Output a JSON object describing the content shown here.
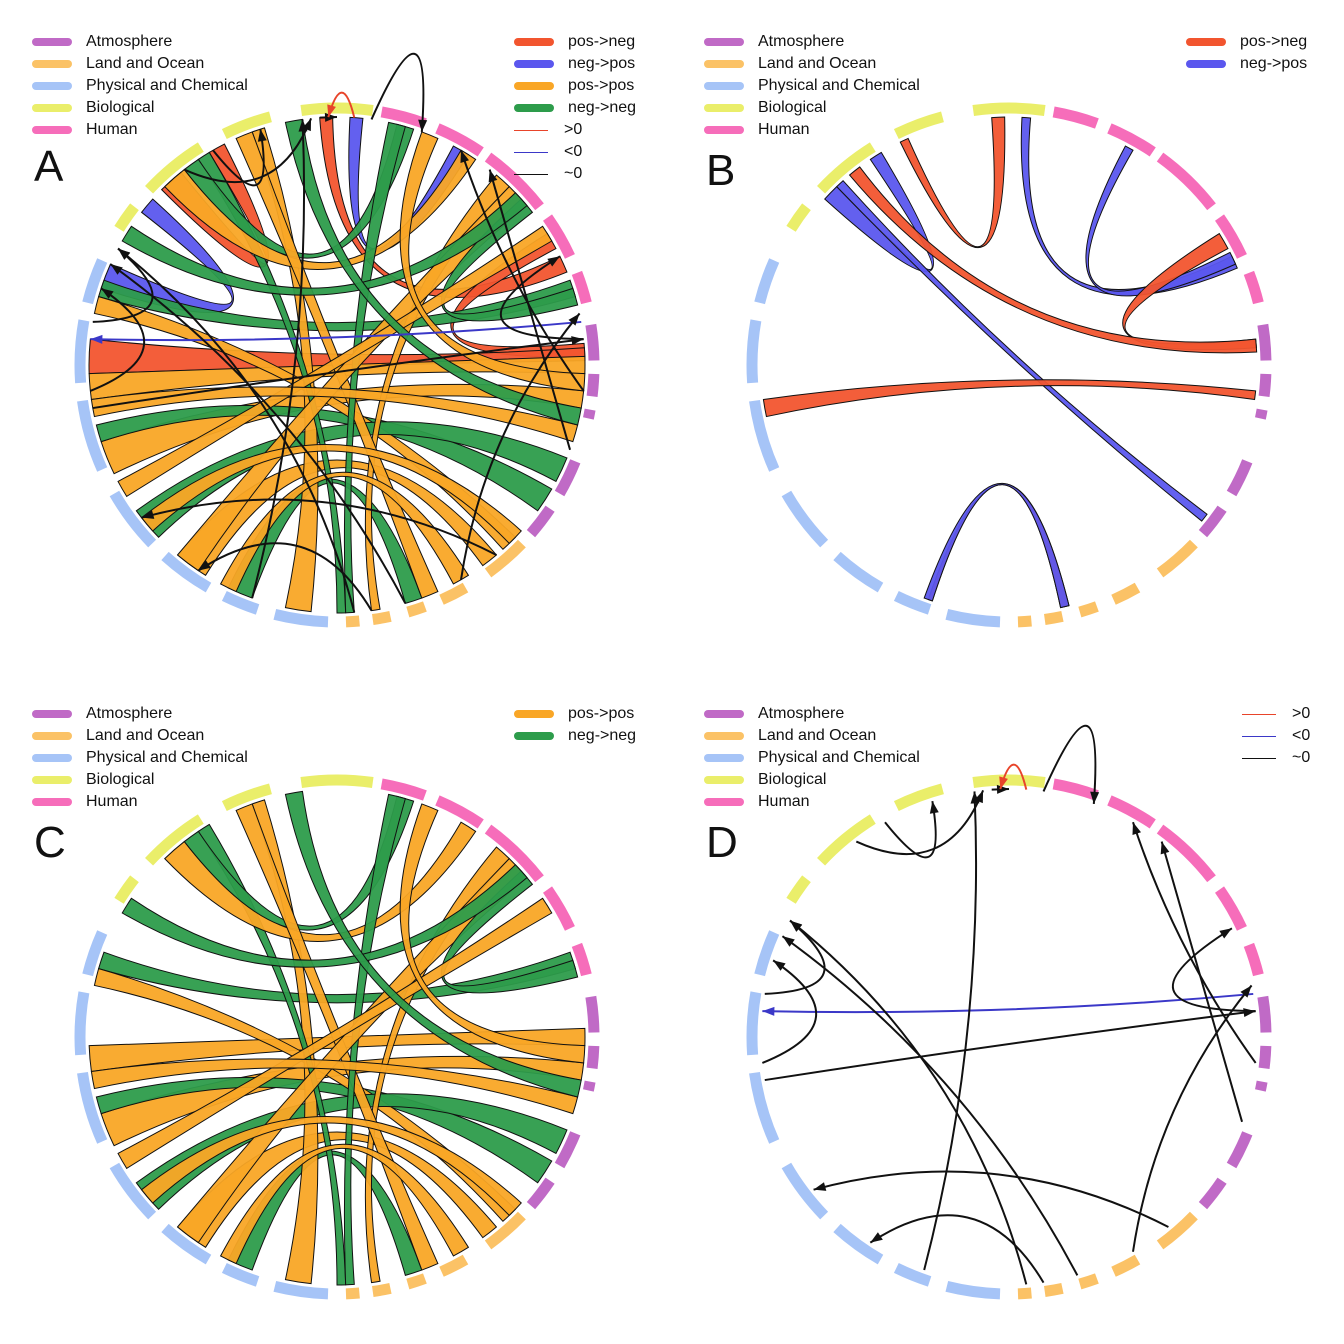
{
  "categories": [
    {
      "label": "Atmosphere",
      "color": "#c06ac6"
    },
    {
      "label": "Land and Ocean",
      "color": "#fbc266"
    },
    {
      "label": "Physical and Chemical",
      "color": "#a6c4f7"
    },
    {
      "label": "Biological",
      "color": "#eaee6a"
    },
    {
      "label": "Human",
      "color": "#f66dba"
    }
  ],
  "link_types": {
    "pos_neg": {
      "label": "pos->neg",
      "color": "#f2552f"
    },
    "neg_pos": {
      "label": "neg->pos",
      "color": "#5b57ee"
    },
    "pos_pos": {
      "label": "pos->pos",
      "color": "#f9a626"
    },
    "neg_neg": {
      "label": "neg->neg",
      "color": "#2d9c4b"
    },
    "gt0": {
      "label": ">0",
      "color": "#e8442a"
    },
    "lt0": {
      "label": "<0",
      "color": "#3b38c8"
    },
    "approx0": {
      "label": "~0",
      "color": "#111111"
    }
  },
  "panels": [
    {
      "letter": "A",
      "link_legend": [
        "pos_neg",
        "neg_pos",
        "pos_pos",
        "neg_neg",
        "gt0",
        "lt0",
        "approx0"
      ]
    },
    {
      "letter": "B",
      "link_legend": [
        "pos_neg",
        "neg_pos"
      ]
    },
    {
      "letter": "C",
      "link_legend": [
        "pos_pos",
        "neg_neg"
      ]
    },
    {
      "letter": "D",
      "link_legend": [
        "gt0",
        "lt0",
        "approx0"
      ]
    }
  ]
}
